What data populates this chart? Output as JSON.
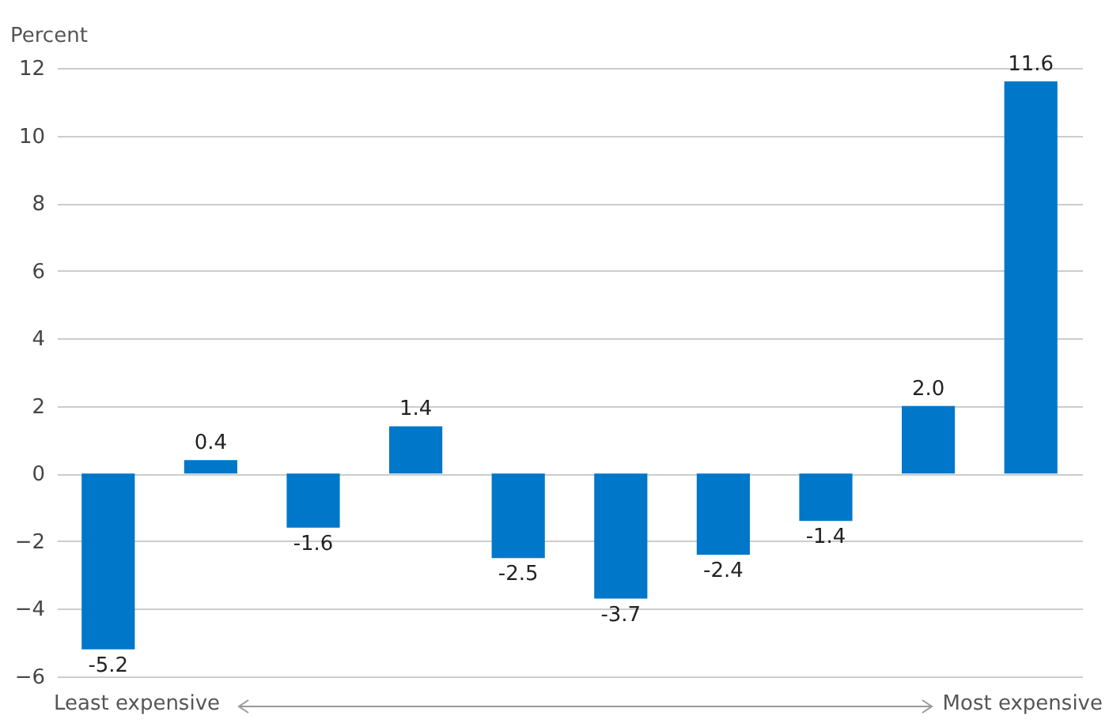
{
  "chart_data": {
    "type": "bar",
    "ylabel": "Percent",
    "categories": [
      null,
      null,
      null,
      null,
      null,
      null,
      null,
      null,
      null,
      null
    ],
    "values": [
      -5.2,
      0.4,
      -1.6,
      1.4,
      -2.5,
      -3.7,
      -2.4,
      -1.4,
      2.0,
      11.6
    ],
    "color": "#0077c8",
    "ylim": [
      -6,
      12
    ],
    "yticks": [
      -6,
      -4,
      -2,
      0,
      2,
      4,
      6,
      8,
      10,
      12
    ],
    "grid": "y",
    "value_labels": [
      "-5.2",
      "0.4",
      "-1.6",
      "1.4",
      "-2.5",
      "-3.7",
      "-2.4",
      "-1.4",
      "2.0",
      "11.6"
    ],
    "annotations": [
      "Least expensive",
      "Most expensive"
    ]
  }
}
